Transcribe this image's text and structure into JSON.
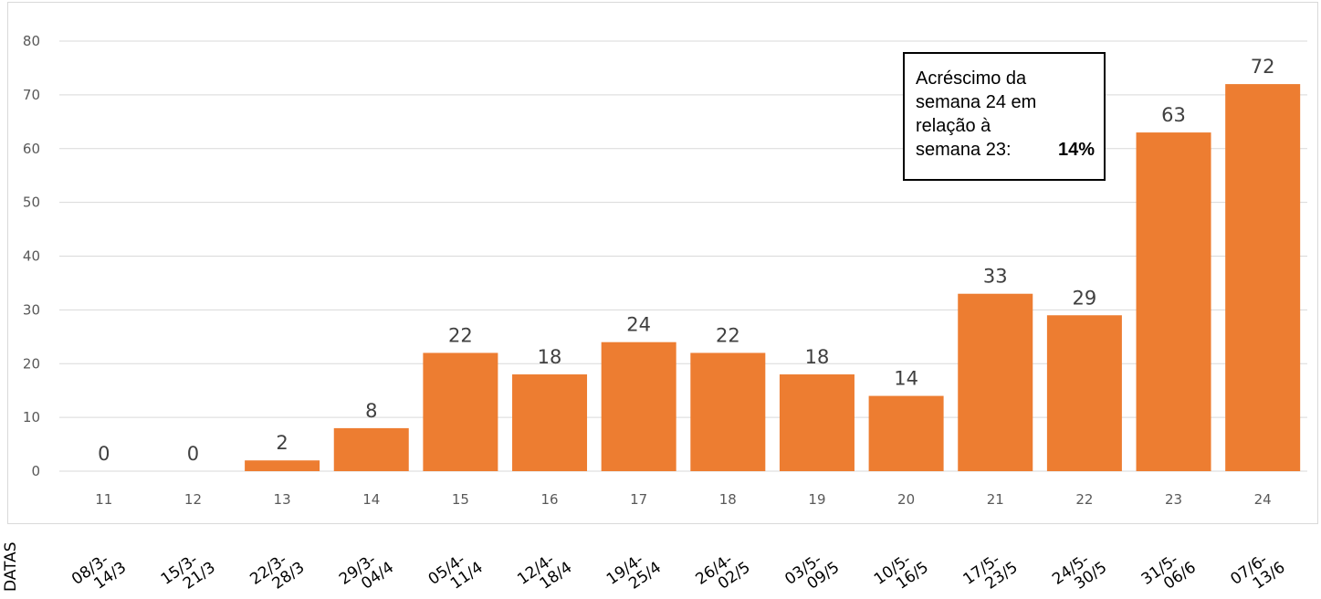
{
  "chart_data": {
    "type": "bar",
    "categories": [
      "11",
      "12",
      "13",
      "14",
      "15",
      "16",
      "17",
      "18",
      "19",
      "20",
      "21",
      "22",
      "23",
      "24"
    ],
    "date_labels": [
      [
        "08/3-",
        "14/3"
      ],
      [
        "15/3-",
        "21/3"
      ],
      [
        "22/3-",
        "28/3"
      ],
      [
        "29/3-",
        "04/4"
      ],
      [
        "05/4-",
        "11/4"
      ],
      [
        "12/4-",
        "18/4"
      ],
      [
        "19/4-",
        "25/4"
      ],
      [
        "26/4-",
        "02/5"
      ],
      [
        "03/5-",
        "09/5"
      ],
      [
        "10/5-",
        "16/5"
      ],
      [
        "17/5-",
        "23/5"
      ],
      [
        "24/5-",
        "30/5"
      ],
      [
        "31/5-",
        "06/6"
      ],
      [
        "07/6-",
        "13/6"
      ]
    ],
    "dates_axis_label": "DATAS",
    "values": [
      0,
      0,
      2,
      8,
      22,
      18,
      24,
      22,
      18,
      14,
      33,
      29,
      63,
      72
    ],
    "ylim": [
      0,
      80
    ],
    "yticks": [
      0,
      10,
      20,
      30,
      40,
      50,
      60,
      70,
      80
    ],
    "grid": true,
    "bar_color": "#ED7D31",
    "grid_color": "#d9d9d9",
    "annotation": {
      "line1": "Acréscimo da",
      "line2": "semana 24 em",
      "line3": "relação à",
      "line4": "semana 23:",
      "percent": "14%"
    }
  }
}
